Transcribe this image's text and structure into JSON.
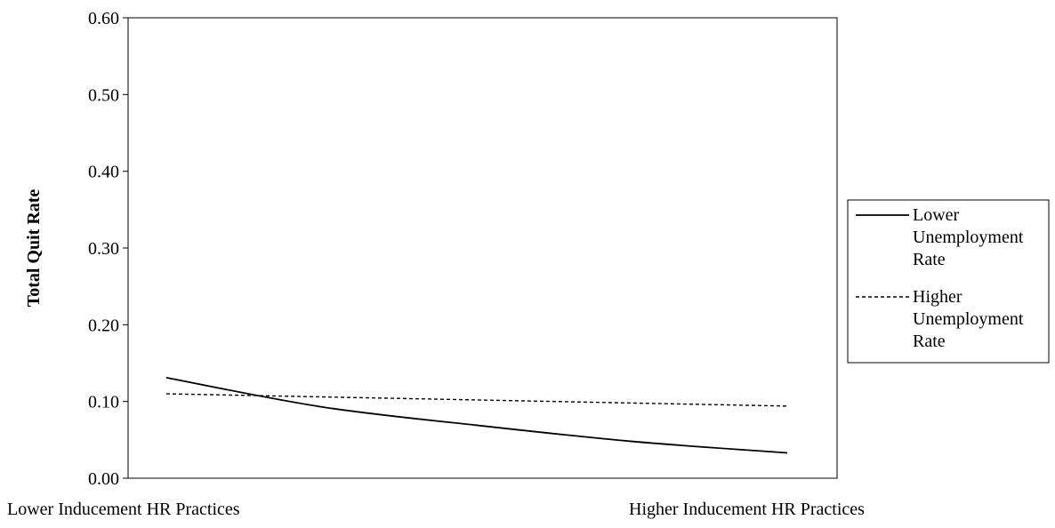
{
  "chart_data": {
    "type": "line",
    "title": "",
    "ylabel": "Total Quit Rate",
    "xlabel": "",
    "x_categories": [
      "Lower  Inducement HR Practices",
      "Higher  Inducement HR Practices"
    ],
    "ylim": [
      0,
      0.6
    ],
    "yticks": [
      "0.00",
      "0.10",
      "0.20",
      "0.30",
      "0.40",
      "0.50",
      "0.60"
    ],
    "x": [
      0,
      0.25,
      0.5,
      0.75,
      1
    ],
    "series": [
      {
        "name_lines": [
          "Lower",
          "Unemployment",
          "Rate"
        ],
        "style": "solid",
        "values": [
          0.131,
          0.093,
          0.069,
          0.048,
          0.033
        ]
      },
      {
        "name_lines": [
          "Higher",
          "Unemployment",
          "Rate"
        ],
        "style": "dashed",
        "values": [
          0.11,
          0.106,
          0.102,
          0.098,
          0.094
        ]
      }
    ],
    "grid": false,
    "legend_position": "right"
  },
  "colors": {
    "line": "#000000",
    "axis": "#000000",
    "background": "#ffffff"
  }
}
